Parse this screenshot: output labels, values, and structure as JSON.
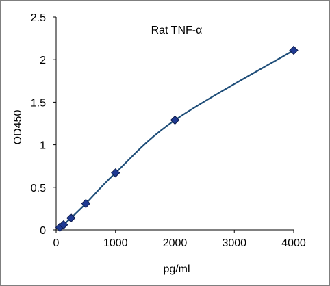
{
  "chart_data": {
    "type": "scatter",
    "title": "Rat TNF-α",
    "xlabel": "pg/ml",
    "ylabel": "OD450",
    "xlim": [
      0,
      4000
    ],
    "ylim": [
      0,
      2.5
    ],
    "x_ticks": [
      "0",
      "1000",
      "2000",
      "3000",
      "4000"
    ],
    "y_ticks": [
      "0",
      "0.5",
      "1",
      "1.5",
      "2",
      "2.5"
    ],
    "grid": false,
    "legend": "none",
    "series": [
      {
        "x": [
          62.5,
          125,
          250,
          500,
          1000,
          2000,
          4000
        ],
        "y": [
          0.03,
          0.06,
          0.14,
          0.31,
          0.67,
          1.29,
          2.11
        ]
      }
    ],
    "marker": "diamond",
    "line": "smooth",
    "colors": {
      "line": "#1f4e79",
      "marker_fill": "#1f3a93",
      "marker_edge": "#0d1b4d",
      "axis": "#000000"
    }
  }
}
